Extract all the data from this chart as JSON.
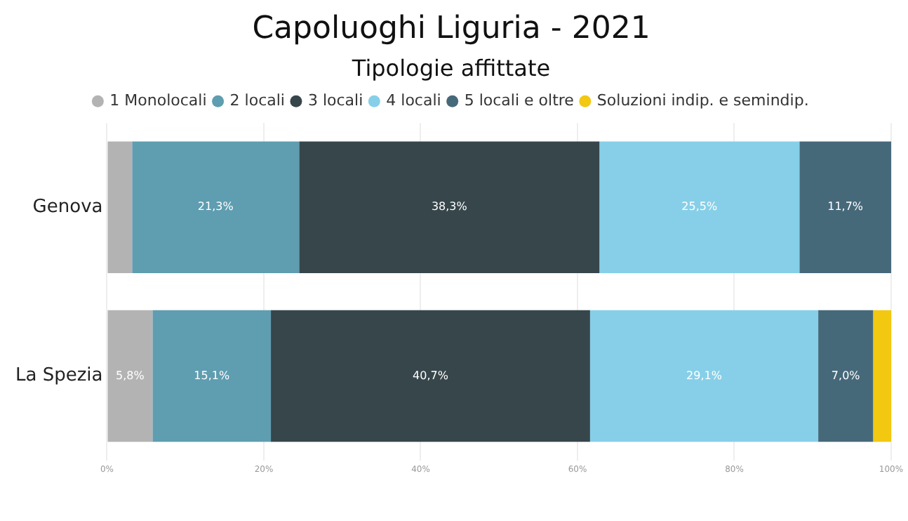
{
  "chart_data": {
    "type": "bar",
    "orientation": "horizontal",
    "stacked": true,
    "title": "Capoluoghi Liguria - 2021",
    "subtitle": "Tipologie affittate",
    "categories": [
      "Genova",
      "La Spezia"
    ],
    "series": [
      {
        "name": "1 Monolocali",
        "color": "#b3b3b3",
        "values": [
          3.2,
          5.8
        ],
        "value_labels": [
          null,
          "5,8%"
        ]
      },
      {
        "name": "2 locali",
        "color": "#5f9db0",
        "values": [
          21.3,
          15.1
        ],
        "value_labels": [
          "21,3%",
          "15,1%"
        ]
      },
      {
        "name": "3 locali",
        "color": "#37464b",
        "values": [
          38.3,
          40.7
        ],
        "value_labels": [
          "38,3%",
          "40,7%"
        ]
      },
      {
        "name": "4 locali",
        "color": "#87cfe8",
        "values": [
          25.5,
          29.1
        ],
        "value_labels": [
          "25,5%",
          "29,1%"
        ]
      },
      {
        "name": "5 locali e oltre",
        "color": "#46697a",
        "values": [
          11.7,
          7.0
        ],
        "value_labels": [
          "11,7%",
          "7,0%"
        ]
      },
      {
        "name": "Soluzioni indip. e semindip.",
        "color": "#f2c811",
        "values": [
          null,
          2.3
        ],
        "value_labels": [
          null,
          null
        ]
      }
    ],
    "xlim": [
      0,
      100
    ],
    "xticks": [
      {
        "value": 0,
        "label": "0%"
      },
      {
        "value": 20,
        "label": "20%"
      },
      {
        "value": 40,
        "label": "40%"
      },
      {
        "value": 60,
        "label": "60%"
      },
      {
        "value": 80,
        "label": "80%"
      },
      {
        "value": 100,
        "label": "100%"
      }
    ],
    "grid": "x",
    "legend": "top"
  }
}
